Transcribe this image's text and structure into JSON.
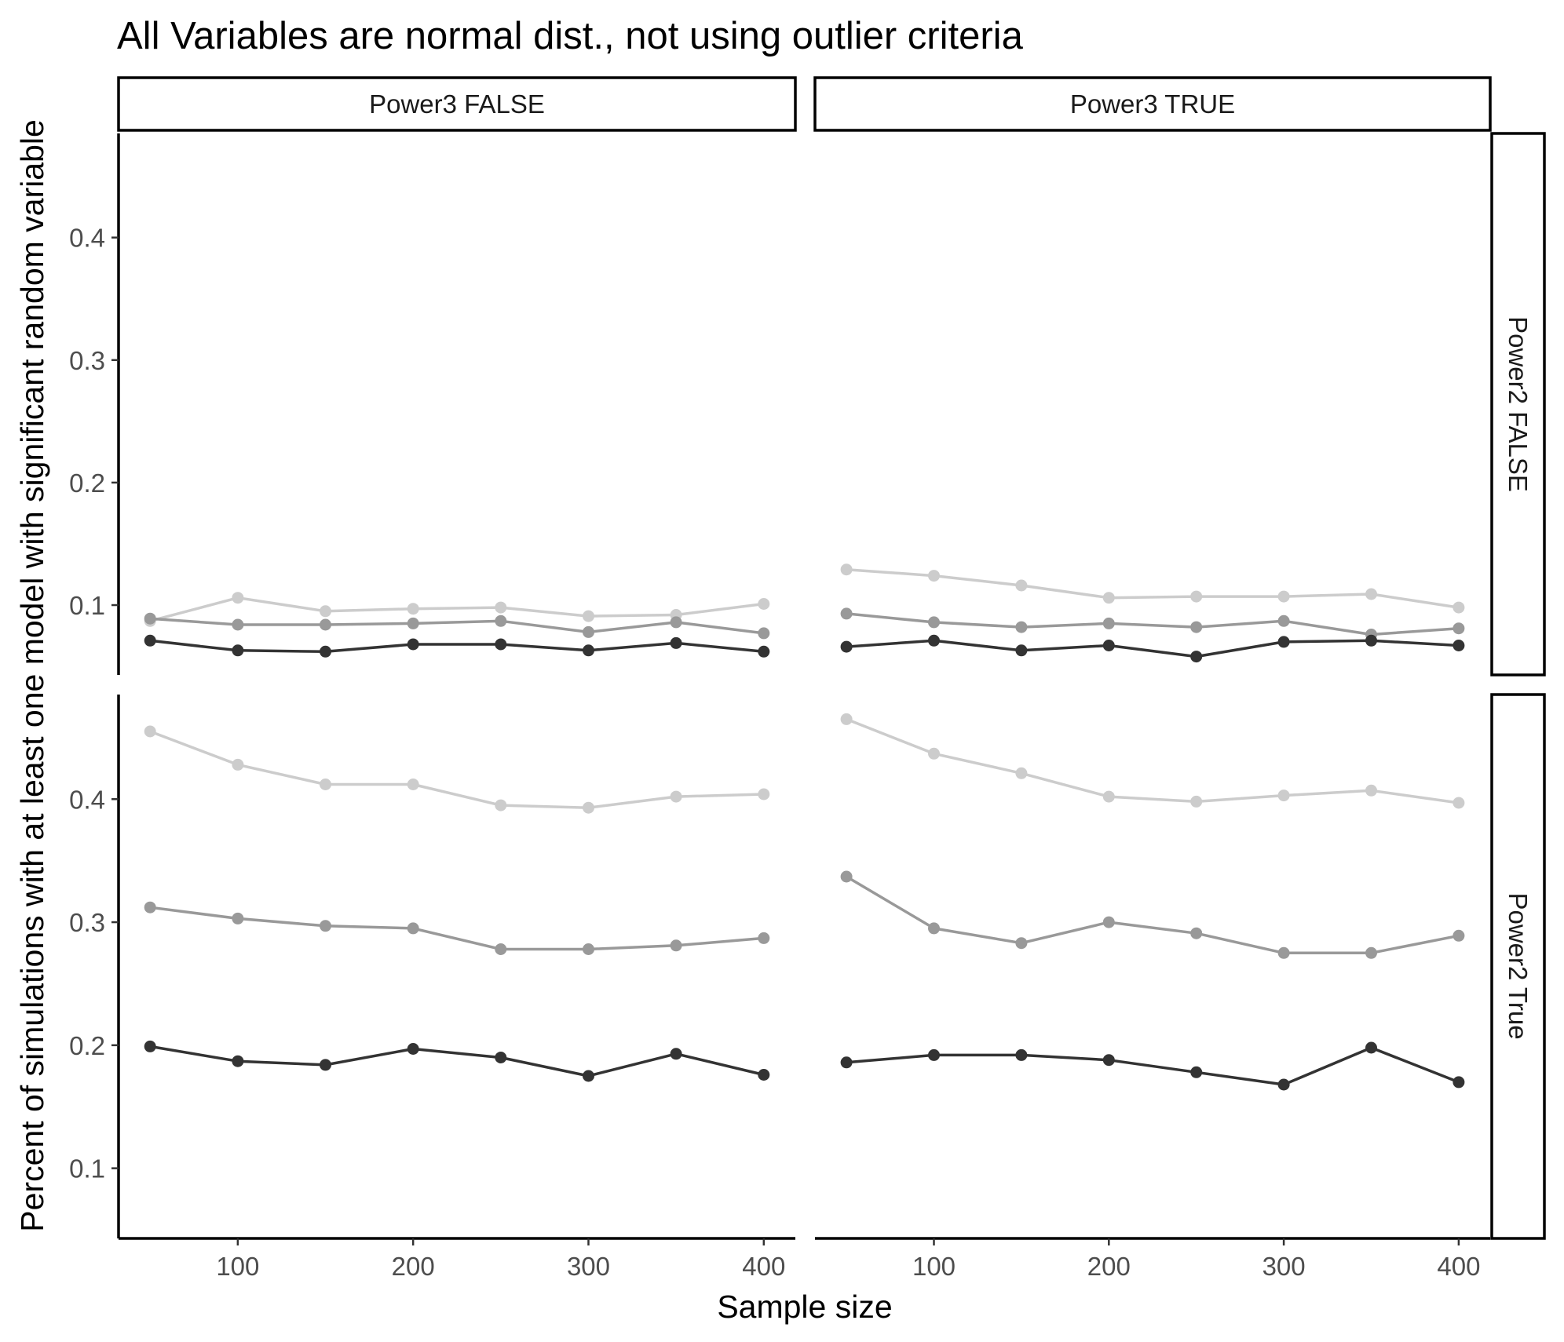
{
  "chart_data": {
    "type": "line",
    "title": "All Variables are normal dist., not using outlier criteria",
    "xlabel": "Sample size",
    "ylabel": "Percent of simulations with at least one model with significant random variable",
    "col_facets": [
      "Power3 FALSE",
      "Power3 TRUE"
    ],
    "row_facets": [
      "Power2 FALSE",
      "Power2 True"
    ],
    "x": [
      50,
      100,
      150,
      200,
      250,
      300,
      350,
      400
    ],
    "x_ticks": [
      100,
      200,
      300,
      400
    ],
    "xlim": [
      32,
      418
    ],
    "y_ticks": [
      [
        0.1,
        0.2,
        0.3,
        0.4
      ],
      [
        0.1,
        0.2,
        0.3,
        0.4
      ]
    ],
    "ylim": [
      [
        0.043,
        0.485
      ],
      [
        0.043,
        0.485
      ]
    ],
    "grid": false,
    "legend": "none",
    "series_colors": [
      "#333333",
      "#999999",
      "#cccccc"
    ],
    "panels": [
      {
        "row": 0,
        "col": 0,
        "series": [
          {
            "values": [
              0.071,
              0.063,
              0.062,
              0.068,
              0.068,
              0.063,
              0.069,
              0.062
            ]
          },
          {
            "values": [
              0.089,
              0.084,
              0.084,
              0.085,
              0.087,
              0.078,
              0.086,
              0.077
            ]
          },
          {
            "values": [
              0.087,
              0.106,
              0.095,
              0.097,
              0.098,
              0.091,
              0.092,
              0.101
            ]
          }
        ]
      },
      {
        "row": 0,
        "col": 1,
        "series": [
          {
            "values": [
              0.066,
              0.071,
              0.063,
              0.067,
              0.058,
              0.07,
              0.071,
              0.067
            ]
          },
          {
            "values": [
              0.093,
              0.086,
              0.082,
              0.085,
              0.082,
              0.087,
              0.076,
              0.081
            ]
          },
          {
            "values": [
              0.129,
              0.124,
              0.116,
              0.106,
              0.107,
              0.107,
              0.109,
              0.098
            ]
          }
        ]
      },
      {
        "row": 1,
        "col": 0,
        "series": [
          {
            "values": [
              0.199,
              0.187,
              0.184,
              0.197,
              0.19,
              0.175,
              0.193,
              0.176
            ]
          },
          {
            "values": [
              0.312,
              0.303,
              0.297,
              0.295,
              0.278,
              0.278,
              0.281,
              0.287
            ]
          },
          {
            "values": [
              0.455,
              0.428,
              0.412,
              0.412,
              0.395,
              0.393,
              0.402,
              0.404
            ]
          }
        ]
      },
      {
        "row": 1,
        "col": 1,
        "series": [
          {
            "values": [
              0.186,
              0.192,
              0.192,
              0.188,
              0.178,
              0.168,
              0.198,
              0.17
            ]
          },
          {
            "values": [
              0.337,
              0.295,
              0.283,
              0.3,
              0.291,
              0.275,
              0.275,
              0.289
            ]
          },
          {
            "values": [
              0.465,
              0.437,
              0.421,
              0.402,
              0.398,
              0.403,
              0.407,
              0.397
            ]
          }
        ]
      }
    ]
  }
}
